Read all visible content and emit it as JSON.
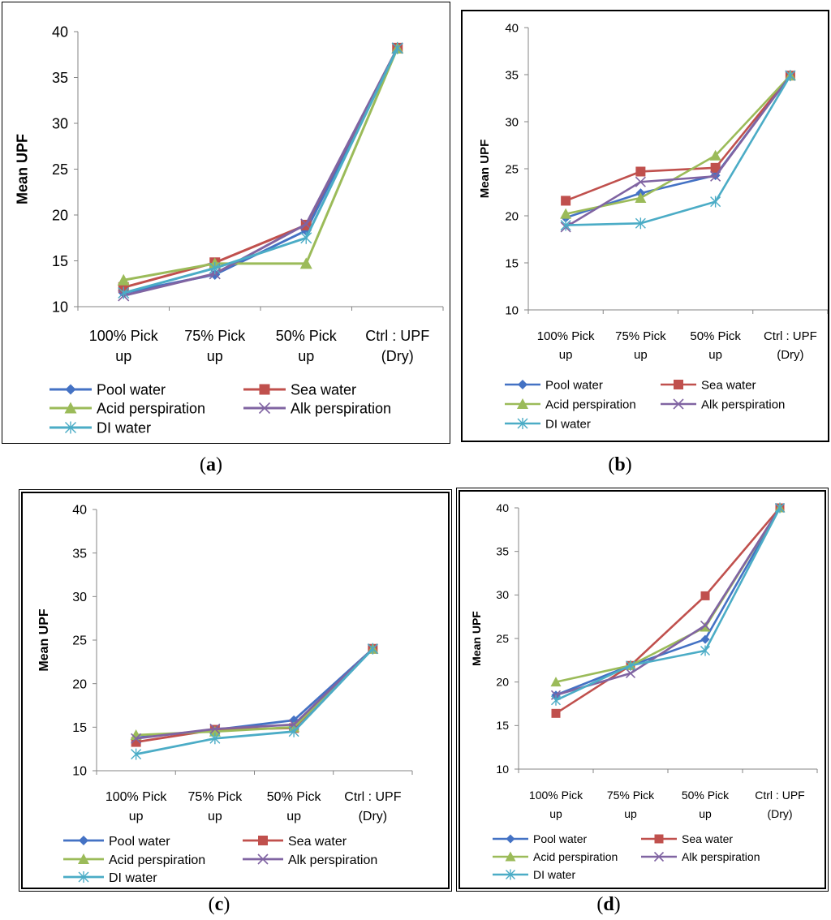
{
  "colors": {
    "Pool water": "#4472C4",
    "Sea water": "#C0504D",
    "Acid perspiration": "#9BBB59",
    "Alk perspiration": "#8064A2",
    "DI water": "#4BACC6"
  },
  "chart_data": [
    {
      "panel": "a",
      "type": "line",
      "ylabel": "Mean UPF",
      "ylim": [
        10,
        40
      ],
      "yticks": [
        "10",
        "15",
        "20",
        "25",
        "30",
        "35",
        "40"
      ],
      "categories": [
        [
          "100% Pick",
          "up"
        ],
        [
          "75% Pick",
          "up"
        ],
        [
          "50% Pick",
          "up"
        ],
        [
          "Ctrl : UPF",
          "(Dry)"
        ]
      ],
      "series": [
        {
          "name": "Pool water",
          "marker": "diamond",
          "values": [
            11.5,
            13.5,
            18.3,
            38.2
          ]
        },
        {
          "name": "Sea water",
          "marker": "square",
          "values": [
            12.1,
            14.8,
            18.9,
            38.2
          ]
        },
        {
          "name": "Acid perspiration",
          "marker": "triangle",
          "values": [
            12.9,
            14.7,
            14.7,
            38.2
          ]
        },
        {
          "name": "Alk perspiration",
          "marker": "x",
          "values": [
            11.2,
            13.6,
            19.0,
            38.2
          ]
        },
        {
          "name": "DI water",
          "marker": "star",
          "values": [
            11.5,
            14.2,
            17.5,
            38.2
          ]
        }
      ],
      "caption": "a"
    },
    {
      "panel": "b",
      "type": "line",
      "ylabel": "Mean UPF",
      "ylim": [
        10,
        40
      ],
      "yticks": [
        "10",
        "15",
        "20",
        "25",
        "30",
        "35",
        "40"
      ],
      "categories": [
        [
          "100% Pick",
          "up"
        ],
        [
          "75% Pick",
          "up"
        ],
        [
          "50% Pick",
          "up"
        ],
        [
          "Ctrl : UPF",
          "(Dry)"
        ]
      ],
      "series": [
        {
          "name": "Pool water",
          "marker": "diamond",
          "values": [
            19.8,
            22.4,
            24.3,
            34.9
          ]
        },
        {
          "name": "Sea water",
          "marker": "square",
          "values": [
            21.6,
            24.7,
            25.1,
            34.9
          ]
        },
        {
          "name": "Acid perspiration",
          "marker": "triangle",
          "values": [
            20.2,
            21.9,
            26.4,
            34.9
          ]
        },
        {
          "name": "Alk perspiration",
          "marker": "x",
          "values": [
            18.8,
            23.6,
            24.2,
            34.9
          ]
        },
        {
          "name": "DI water",
          "marker": "star",
          "values": [
            19.0,
            19.2,
            21.5,
            34.9
          ]
        }
      ],
      "caption": "b"
    },
    {
      "panel": "c",
      "type": "line",
      "ylabel": "Mean UPF",
      "ylim": [
        10,
        40
      ],
      "yticks": [
        "10",
        "15",
        "20",
        "25",
        "30",
        "35",
        "40"
      ],
      "categories": [
        [
          "100% Pick",
          "up"
        ],
        [
          "75% Pick",
          "up"
        ],
        [
          "50% Pick",
          "up"
        ],
        [
          "Ctrl : UPF",
          "(Dry)"
        ]
      ],
      "series": [
        {
          "name": "Pool water",
          "marker": "diamond",
          "values": [
            13.8,
            14.7,
            15.8,
            24.0
          ]
        },
        {
          "name": "Sea water",
          "marker": "square",
          "values": [
            13.3,
            14.7,
            14.9,
            24.0
          ]
        },
        {
          "name": "Acid perspiration",
          "marker": "triangle",
          "values": [
            14.1,
            14.5,
            15.0,
            24.0
          ]
        },
        {
          "name": "Alk perspiration",
          "marker": "x",
          "values": [
            13.7,
            14.8,
            15.3,
            24.0
          ]
        },
        {
          "name": "DI water",
          "marker": "star",
          "values": [
            11.9,
            13.7,
            14.5,
            24.0
          ]
        }
      ],
      "caption": "c"
    },
    {
      "panel": "d",
      "type": "line",
      "ylabel": "Mean UPF",
      "ylim": [
        10,
        40
      ],
      "yticks": [
        "10",
        "15",
        "20",
        "25",
        "30",
        "35",
        "40"
      ],
      "categories": [
        [
          "100% Pick",
          "up"
        ],
        [
          "75% Pick",
          "up"
        ],
        [
          "50% Pick",
          "up"
        ],
        [
          "Ctrl : UPF",
          "(Dry)"
        ]
      ],
      "series": [
        {
          "name": "Pool water",
          "marker": "diamond",
          "values": [
            18.5,
            21.9,
            24.9,
            40.0
          ]
        },
        {
          "name": "Sea water",
          "marker": "square",
          "values": [
            16.4,
            21.9,
            29.9,
            40.0
          ]
        },
        {
          "name": "Acid perspiration",
          "marker": "triangle",
          "values": [
            20.0,
            21.9,
            26.3,
            40.0
          ]
        },
        {
          "name": "Alk perspiration",
          "marker": "x",
          "values": [
            18.5,
            21.0,
            26.5,
            40.0
          ]
        },
        {
          "name": "DI water",
          "marker": "star",
          "values": [
            17.9,
            21.9,
            23.6,
            40.0
          ]
        }
      ],
      "caption": "d"
    }
  ]
}
